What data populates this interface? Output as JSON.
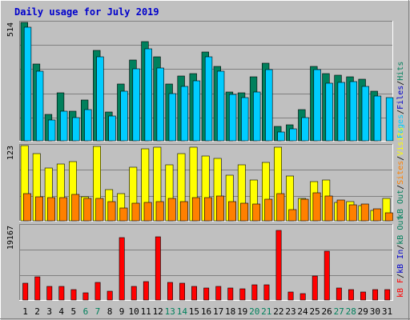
{
  "chart_data": {
    "type": "bar",
    "title": "Daily usage for July 2019",
    "days": [
      "1",
      "2",
      "3",
      "4",
      "5",
      "6",
      "7",
      "8",
      "9",
      "10",
      "11",
      "12",
      "13",
      "14",
      "15",
      "16",
      "17",
      "18",
      "19",
      "20",
      "21",
      "22",
      "23",
      "24",
      "25",
      "26",
      "27",
      "28",
      "29",
      "30",
      "31"
    ],
    "weekend_days": [
      "6",
      "7",
      "13",
      "14",
      "20",
      "21",
      "27",
      "28"
    ],
    "colors": {
      "title": "#0000cc",
      "day_label": "#000000",
      "weekend_label": "#00805c",
      "hits": "#00805c",
      "files": "#0000cc",
      "pages": "#00ccff",
      "visits": "#ffff00",
      "sites": "#ff8000",
      "kb_f": "#ff0000",
      "kb_in": "#0000cc",
      "kb_out": "#00805c"
    },
    "panels": [
      {
        "key": "top",
        "ymax_label": "514",
        "ymax": 514,
        "legend": [
          {
            "text": "Hits",
            "color": "#00805c"
          },
          {
            "text": "Files",
            "color": "#0000cc"
          },
          {
            "text": "Pages",
            "color": "#00ccff"
          }
        ],
        "series": [
          {
            "name": "Hits",
            "color": "#00805c",
            "values": [
              514,
              335,
              115,
              210,
              128,
              177,
              394,
              126,
              246,
              350,
              429,
              364,
              246,
              283,
              291,
              386,
              323,
              213,
              210,
              279,
              338,
              63,
              70,
              136,
              324,
              293,
              285,
              278,
              266,
              216,
              0
            ]
          },
          {
            "name": "Files",
            "color": "#0000cc",
            "values": [
              0,
              0,
              0,
              0,
              0,
              0,
              0,
              0,
              0,
              0,
              0,
              0,
              0,
              0,
              0,
              0,
              0,
              0,
              0,
              0,
              0,
              0,
              0,
              0,
              0,
              0,
              0,
              0,
              0,
              0,
              0
            ]
          },
          {
            "name": "Pages",
            "color": "#00ccff",
            "values": [
              493,
              303,
              92,
              130,
              100,
              134,
              365,
              108,
              215,
              313,
              399,
              317,
              206,
              236,
              260,
              363,
              303,
              200,
              189,
              212,
              309,
              39,
              51,
              101,
              308,
              251,
              255,
              256,
              236,
              194,
              186
            ]
          }
        ]
      },
      {
        "key": "middle",
        "ymax_label": "123",
        "ymax": 123,
        "legend": [
          {
            "text": "Visits",
            "color": "#ffff00"
          },
          {
            "text": "Sites",
            "color": "#ff8000"
          },
          {
            "text": "kB Out",
            "color": "#00805c"
          }
        ],
        "series": [
          {
            "name": "Visits",
            "color": "#ffff00",
            "values": [
              123,
              110,
              86,
              93,
              97,
              39,
              122,
              51,
              45,
              88,
              118,
              120,
              91,
              110,
              121,
              106,
              102,
              75,
              92,
              67,
              95,
              121,
              73,
              37,
              64,
              67,
              30,
              31,
              25,
              17,
              36
            ]
          },
          {
            "name": "Sites",
            "color": "#ff8000",
            "values": [
              45,
              39,
              38,
              38,
              43,
              36,
              36,
              32,
              21,
              29,
              30,
              32,
              37,
              31,
              38,
              38,
              40,
              32,
              29,
              28,
              35,
              45,
              18,
              35,
              46,
              41,
              34,
              26,
              28,
              20,
              13
            ]
          }
        ]
      },
      {
        "key": "bottom",
        "ymax_label": "19167",
        "ymax": 19167,
        "legend": [
          {
            "text": "kB Out",
            "color": "#00805c"
          },
          {
            "text": "kB In",
            "color": "#0000cc"
          },
          {
            "text": "kB F",
            "color": "#ff0000"
          }
        ],
        "series": [
          {
            "name": "kB F",
            "color": "#ff0000",
            "values": [
              4400,
              6000,
              3600,
              3600,
              2600,
              1800,
              4600,
              2200,
              16000,
              3600,
              4800,
              16300,
              4500,
              4300,
              3600,
              3100,
              3500,
              3000,
              2900,
              3900,
              4000,
              18000,
              2000,
              1700,
              6200,
              12600,
              3100,
              2600,
              2100,
              2600,
              2600
            ]
          }
        ]
      }
    ]
  }
}
